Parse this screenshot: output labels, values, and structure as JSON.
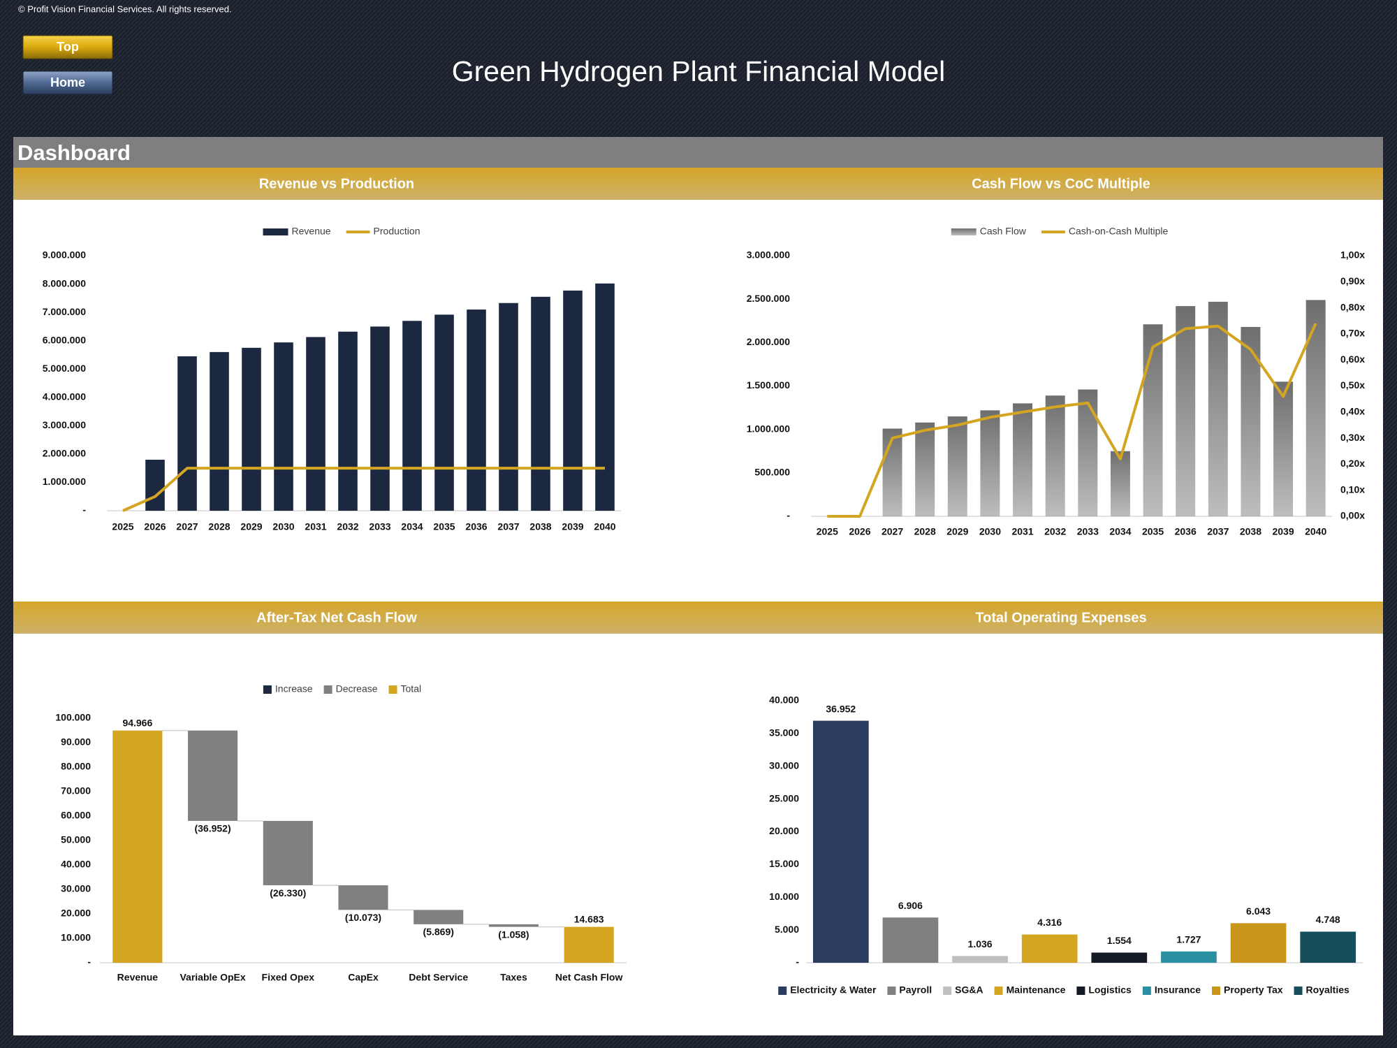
{
  "header": {
    "copyright": "© Profit Vision Financial Services. All rights reserved.",
    "title": "Green Hydrogen Plant Financial Model",
    "buttons": [
      "Top",
      "Home"
    ]
  },
  "section": "Dashboard",
  "chart_data": [
    {
      "type": "combo",
      "title": "Revenue vs Production",
      "categories": [
        "2025",
        "2026",
        "2027",
        "2028",
        "2029",
        "2030",
        "2031",
        "2032",
        "2033",
        "2034",
        "2035",
        "2036",
        "2037",
        "2038",
        "2039",
        "2040"
      ],
      "series": [
        {
          "name": "Revenue",
          "type": "bar",
          "color": "#1c2840",
          "values": [
            0,
            1800000,
            5450000,
            5600000,
            5750000,
            5940000,
            6130000,
            6320000,
            6500000,
            6700000,
            6920000,
            7100000,
            7330000,
            7550000,
            7770000,
            8020000
          ]
        },
        {
          "name": "Production",
          "type": "line",
          "color": "#d4a520",
          "values": [
            0,
            500000,
            1500000,
            1500000,
            1500000,
            1500000,
            1500000,
            1500000,
            1500000,
            1500000,
            1500000,
            1500000,
            1500000,
            1500000,
            1500000,
            1500000
          ]
        }
      ],
      "ylim": [
        0,
        9000000
      ],
      "yticks": [
        {
          "value": 0,
          "label": "-"
        },
        {
          "value": 1000000,
          "label": "1.000.000"
        },
        {
          "value": 2000000,
          "label": "2.000.000"
        },
        {
          "value": 3000000,
          "label": "3.000.000"
        },
        {
          "value": 4000000,
          "label": "4.000.000"
        },
        {
          "value": 5000000,
          "label": "5.000.000"
        },
        {
          "value": 6000000,
          "label": "6.000.000"
        },
        {
          "value": 7000000,
          "label": "7.000.000"
        },
        {
          "value": 8000000,
          "label": "8.000.000"
        },
        {
          "value": 9000000,
          "label": "9.000.000"
        }
      ]
    },
    {
      "type": "combo",
      "title": "Cash Flow vs CoC Multiple",
      "categories": [
        "2025",
        "2026",
        "2027",
        "2028",
        "2029",
        "2030",
        "2031",
        "2032",
        "2033",
        "2034",
        "2035",
        "2036",
        "2037",
        "2038",
        "2039",
        "2040"
      ],
      "series": [
        {
          "name": "Cash Flow",
          "type": "bar",
          "color": "#6e6e6e",
          "gradient": true,
          "values": [
            0,
            0,
            1010000,
            1080000,
            1150000,
            1220000,
            1300000,
            1390000,
            1460000,
            750000,
            2210000,
            2420000,
            2470000,
            2180000,
            1550000,
            2490000
          ]
        },
        {
          "name": "Cash-on-Cash Multiple",
          "type": "line",
          "axis": "y2",
          "color": "#d4a520",
          "values": [
            0,
            0,
            0.3,
            0.33,
            0.35,
            0.38,
            0.4,
            0.42,
            0.435,
            0.22,
            0.65,
            0.72,
            0.73,
            0.64,
            0.46,
            0.74
          ]
        }
      ],
      "ylim": [
        0,
        3000000
      ],
      "yticks": [
        {
          "value": 0,
          "label": "-"
        },
        {
          "value": 500000,
          "label": "500.000"
        },
        {
          "value": 1000000,
          "label": "1.000.000"
        },
        {
          "value": 1500000,
          "label": "1.500.000"
        },
        {
          "value": 2000000,
          "label": "2.000.000"
        },
        {
          "value": 2500000,
          "label": "2.500.000"
        },
        {
          "value": 3000000,
          "label": "3.000.000"
        }
      ],
      "y2lim": [
        0,
        1
      ],
      "y2ticks": [
        {
          "value": 0,
          "label": "0,00x"
        },
        {
          "value": 0.1,
          "label": "0,10x"
        },
        {
          "value": 0.2,
          "label": "0,20x"
        },
        {
          "value": 0.3,
          "label": "0,30x"
        },
        {
          "value": 0.4,
          "label": "0,40x"
        },
        {
          "value": 0.5,
          "label": "0,50x"
        },
        {
          "value": 0.6,
          "label": "0,60x"
        },
        {
          "value": 0.7,
          "label": "0,70x"
        },
        {
          "value": 0.8,
          "label": "0,80x"
        },
        {
          "value": 0.9,
          "label": "0,90x"
        },
        {
          "value": 1,
          "label": "1,00x"
        }
      ]
    },
    {
      "type": "waterfall",
      "title": "After-Tax Net Cash Flow",
      "categories": [
        "Revenue",
        "Variable OpEx",
        "Fixed Opex",
        "CapEx",
        "Debt Service",
        "Taxes",
        "Net Cash Flow"
      ],
      "values": [
        94966,
        -36952,
        -26330,
        -10073,
        -5869,
        -1058,
        14683
      ],
      "value_labels": [
        "94.966",
        "(36.952)",
        "(26.330)",
        "(10.073)",
        "(5.869)",
        "(1.058)",
        "14.683"
      ],
      "series": [
        {
          "name": "Increase",
          "color": "#1c2840"
        },
        {
          "name": "Decrease",
          "color": "#808080"
        },
        {
          "name": "Total",
          "color": "#d4a520"
        }
      ],
      "ylim": [
        0,
        100000
      ],
      "yticks": [
        {
          "value": 0,
          "label": "-"
        },
        {
          "value": 10000,
          "label": "10.000"
        },
        {
          "value": 20000,
          "label": "20.000"
        },
        {
          "value": 30000,
          "label": "30.000"
        },
        {
          "value": 40000,
          "label": "40.000"
        },
        {
          "value": 50000,
          "label": "50.000"
        },
        {
          "value": 60000,
          "label": "60.000"
        },
        {
          "value": 70000,
          "label": "70.000"
        },
        {
          "value": 80000,
          "label": "80.000"
        },
        {
          "value": 90000,
          "label": "90.000"
        },
        {
          "value": 100000,
          "label": "100.000"
        }
      ]
    },
    {
      "type": "bar",
      "title": "Total Operating Expenses",
      "categories": [
        "Electricity & Water",
        "Payroll",
        "SG&A",
        "Maintenance",
        "Logistics",
        "Insurance",
        "Property Tax",
        "Royalties"
      ],
      "values": [
        36952,
        6906,
        1036,
        4316,
        1554,
        1727,
        6043,
        4748
      ],
      "value_labels": [
        "36.952",
        "6.906",
        "1.036",
        "4.316",
        "1.554",
        "1.727",
        "6.043",
        "4.748"
      ],
      "colors": [
        "#2b3d5e",
        "#808080",
        "#bfbfbf",
        "#d4a520",
        "#131a26",
        "#2a8fa0",
        "#c9961c",
        "#164e5c"
      ],
      "ylim": [
        0,
        40000
      ],
      "yticks": [
        {
          "value": 0,
          "label": "-"
        },
        {
          "value": 5000,
          "label": "5.000"
        },
        {
          "value": 10000,
          "label": "10.000"
        },
        {
          "value": 15000,
          "label": "15.000"
        },
        {
          "value": 20000,
          "label": "20.000"
        },
        {
          "value": 25000,
          "label": "25.000"
        },
        {
          "value": 30000,
          "label": "30.000"
        },
        {
          "value": 35000,
          "label": "35.000"
        },
        {
          "value": 40000,
          "label": "40.000"
        }
      ]
    }
  ]
}
